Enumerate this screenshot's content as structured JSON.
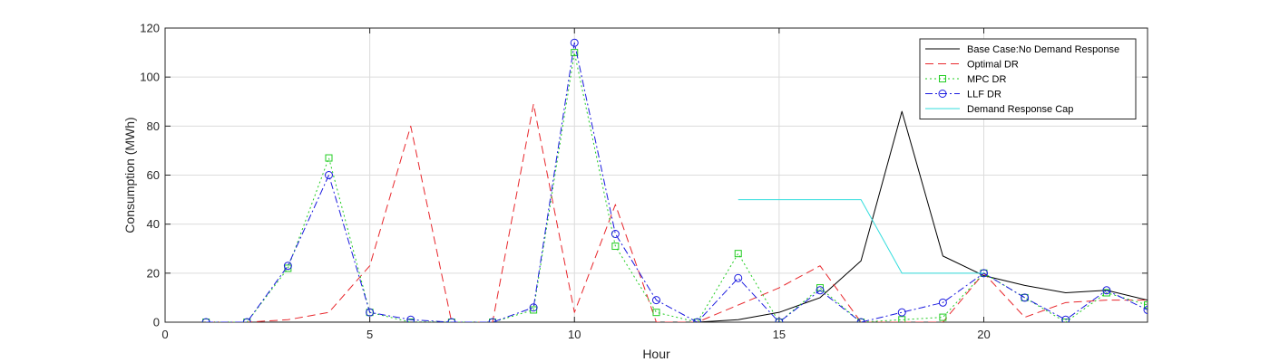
{
  "chart_data": {
    "type": "line",
    "title": "",
    "xlabel": "Hour",
    "ylabel": "Consumption (MWh)",
    "xlim": [
      0,
      24
    ],
    "ylim": [
      0,
      120
    ],
    "xticks": [
      0,
      5,
      10,
      15,
      20
    ],
    "yticks": [
      0,
      20,
      40,
      60,
      80,
      100,
      120
    ],
    "grid": true,
    "legend_position": "top-right",
    "series": [
      {
        "name": "Base Case:No Demand Response",
        "color": "#000000",
        "dash": "solid",
        "marker": "none",
        "x": [
          1,
          2,
          3,
          4,
          5,
          6,
          7,
          8,
          9,
          10,
          11,
          12,
          13,
          14,
          15,
          16,
          17,
          18,
          19,
          20,
          21,
          22,
          23,
          24
        ],
        "y": [
          0,
          0,
          0,
          0,
          0,
          0,
          0,
          0,
          0,
          0,
          0,
          0,
          0,
          1,
          4,
          10,
          25,
          86,
          27,
          19,
          15,
          12,
          13,
          9
        ]
      },
      {
        "name": "Optimal DR",
        "color": "#e8262b",
        "dash": "dashed",
        "marker": "none",
        "x": [
          1,
          2,
          3,
          4,
          5,
          6,
          7,
          8,
          9,
          10,
          11,
          12,
          13,
          14,
          15,
          16,
          17,
          18,
          19,
          20,
          21,
          22,
          23,
          24
        ],
        "y": [
          0,
          0,
          1,
          4,
          23,
          80,
          0,
          0,
          89,
          4,
          48,
          0,
          0,
          7,
          14,
          23,
          0,
          0,
          0,
          20,
          2,
          8,
          9,
          9
        ]
      },
      {
        "name": "MPC DR",
        "color": "#22cc22",
        "dash": "dotted",
        "marker": "square",
        "x": [
          1,
          2,
          3,
          4,
          5,
          6,
          7,
          8,
          9,
          10,
          11,
          12,
          13,
          14,
          15,
          16,
          17,
          18,
          19,
          20,
          21,
          22,
          23,
          24
        ],
        "y": [
          0,
          0,
          22,
          67,
          4,
          0,
          0,
          0,
          5,
          110,
          31,
          4,
          0,
          28,
          0,
          14,
          0,
          1,
          2,
          20,
          10,
          0,
          12,
          7
        ]
      },
      {
        "name": "LLF DR",
        "color": "#1a1adf",
        "dash": "dashdot",
        "marker": "circle",
        "x": [
          1,
          2,
          3,
          4,
          5,
          6,
          7,
          8,
          9,
          10,
          11,
          12,
          13,
          14,
          15,
          16,
          17,
          18,
          19,
          20,
          21,
          22,
          23,
          24
        ],
        "y": [
          0,
          0,
          23,
          60,
          4,
          1,
          0,
          0,
          6,
          114,
          36,
          9,
          0,
          18,
          0,
          13,
          0,
          4,
          8,
          20,
          10,
          1,
          13,
          5
        ]
      },
      {
        "name": "Demand Response Cap",
        "color": "#33dddd",
        "dash": "solid",
        "marker": "none",
        "x": [
          14,
          15,
          16,
          17,
          18,
          19,
          20
        ],
        "y": [
          50,
          50,
          50,
          50,
          20,
          20,
          20
        ]
      }
    ]
  }
}
